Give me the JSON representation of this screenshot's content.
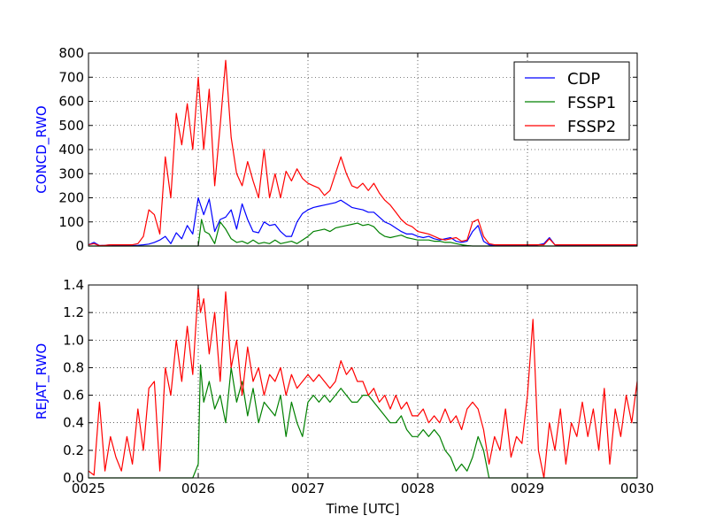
{
  "chart_data": [
    {
      "type": "line",
      "ylabel": "CONCD_RWO",
      "ylabel_color": "#0000ff",
      "ylim": [
        0,
        800
      ],
      "yticks": [
        "0",
        "100",
        "200",
        "300",
        "400",
        "500",
        "600",
        "700",
        "800"
      ],
      "grid": true,
      "legend": {
        "placement": "top-right",
        "entries": [
          "CDP",
          "FSSP1",
          "FSSP2"
        ]
      },
      "series": [
        {
          "name": "CDP",
          "color": "#0000ff",
          "x": [
            0.0,
            0.05,
            0.1,
            0.15,
            0.2,
            0.25,
            0.3,
            0.35,
            0.4,
            0.45,
            0.5,
            0.55,
            0.6,
            0.65,
            0.7,
            0.75,
            0.8,
            0.85,
            0.9,
            0.95,
            1.0,
            1.05,
            1.1,
            1.15,
            1.2,
            1.25,
            1.3,
            1.35,
            1.4,
            1.45,
            1.5,
            1.55,
            1.6,
            1.65,
            1.7,
            1.75,
            1.8,
            1.85,
            1.9,
            1.95,
            2.0,
            2.05,
            2.1,
            2.15,
            2.2,
            2.25,
            2.3,
            2.35,
            2.4,
            2.45,
            2.5,
            2.55,
            2.6,
            2.65,
            2.7,
            2.75,
            2.8,
            2.85,
            2.9,
            2.95,
            3.0,
            3.05,
            3.1,
            3.15,
            3.2,
            3.25,
            3.3,
            3.35,
            3.4,
            3.45,
            3.5,
            3.55,
            3.6,
            3.65,
            3.7,
            3.75,
            3.8,
            3.85,
            3.9,
            3.95,
            4.0,
            4.05,
            4.1,
            4.15,
            4.2,
            4.25,
            4.3,
            4.35,
            4.4,
            4.45,
            4.5,
            4.55,
            4.6,
            4.65,
            4.7,
            4.75,
            4.8,
            4.85,
            4.9,
            4.95,
            5.0
          ],
          "y": [
            5,
            15,
            2,
            3,
            5,
            2,
            2,
            4,
            2,
            3,
            5,
            8,
            15,
            25,
            40,
            10,
            55,
            30,
            85,
            50,
            200,
            130,
            195,
            60,
            110,
            120,
            150,
            70,
            175,
            110,
            60,
            55,
            100,
            85,
            90,
            60,
            40,
            40,
            100,
            135,
            150,
            160,
            165,
            170,
            175,
            180,
            190,
            175,
            160,
            155,
            150,
            140,
            140,
            120,
            100,
            90,
            75,
            60,
            50,
            50,
            40,
            35,
            40,
            30,
            25,
            30,
            35,
            20,
            15,
            20,
            60,
            85,
            20,
            5,
            2,
            2,
            2,
            2,
            2,
            2,
            2,
            2,
            5,
            10,
            35,
            5,
            2,
            2,
            2,
            2,
            2,
            2,
            2,
            2,
            2,
            2,
            2,
            2,
            2,
            2,
            2
          ]
        },
        {
          "name": "FSSP1",
          "color": "#008000",
          "x": [
            0.0,
            0.5,
            0.9,
            0.95,
            1.0,
            1.03,
            1.06,
            1.1,
            1.15,
            1.2,
            1.25,
            1.3,
            1.35,
            1.4,
            1.45,
            1.5,
            1.55,
            1.6,
            1.65,
            1.7,
            1.75,
            1.8,
            1.85,
            1.9,
            1.95,
            2.0,
            2.05,
            2.1,
            2.15,
            2.2,
            2.25,
            2.3,
            2.35,
            2.4,
            2.45,
            2.5,
            2.55,
            2.6,
            2.65,
            2.7,
            2.75,
            2.8,
            2.85,
            2.9,
            2.95,
            3.0,
            3.05,
            3.1,
            3.15,
            3.2,
            3.25,
            3.3,
            3.35,
            3.4,
            3.45,
            3.5,
            3.55,
            3.6,
            3.65,
            5.0
          ],
          "y": [
            0,
            0,
            0,
            0,
            0,
            110,
            60,
            50,
            10,
            100,
            70,
            30,
            15,
            20,
            10,
            25,
            10,
            15,
            10,
            25,
            10,
            15,
            20,
            10,
            25,
            40,
            60,
            65,
            70,
            60,
            75,
            80,
            85,
            90,
            95,
            85,
            90,
            80,
            55,
            40,
            35,
            40,
            45,
            35,
            30,
            25,
            25,
            25,
            20,
            20,
            15,
            15,
            10,
            5,
            2,
            0,
            0,
            0,
            0,
            0
          ]
        },
        {
          "name": "FSSP2",
          "color": "#ff0000",
          "x": [
            0.0,
            0.05,
            0.1,
            0.15,
            0.2,
            0.25,
            0.3,
            0.35,
            0.4,
            0.45,
            0.5,
            0.55,
            0.6,
            0.65,
            0.7,
            0.75,
            0.8,
            0.85,
            0.9,
            0.95,
            1.0,
            1.05,
            1.1,
            1.15,
            1.2,
            1.25,
            1.3,
            1.35,
            1.4,
            1.45,
            1.5,
            1.55,
            1.6,
            1.65,
            1.7,
            1.75,
            1.8,
            1.85,
            1.9,
            1.95,
            2.0,
            2.05,
            2.1,
            2.15,
            2.2,
            2.25,
            2.3,
            2.35,
            2.4,
            2.45,
            2.5,
            2.55,
            2.6,
            2.65,
            2.7,
            2.75,
            2.8,
            2.85,
            2.9,
            2.95,
            3.0,
            3.05,
            3.1,
            3.15,
            3.2,
            3.25,
            3.3,
            3.35,
            3.4,
            3.45,
            3.5,
            3.55,
            3.6,
            3.65,
            3.7,
            3.75,
            3.8,
            3.85,
            3.9,
            3.95,
            4.0,
            4.05,
            4.1,
            4.15,
            4.2,
            4.25,
            4.3,
            4.35,
            4.4,
            4.45,
            4.5,
            4.55,
            4.6,
            4.65,
            4.7,
            4.75,
            4.8,
            4.85,
            4.9,
            4.95,
            5.0
          ],
          "y": [
            5,
            10,
            2,
            3,
            5,
            5,
            5,
            5,
            5,
            10,
            40,
            150,
            130,
            50,
            370,
            200,
            550,
            420,
            590,
            400,
            700,
            400,
            650,
            250,
            500,
            770,
            450,
            300,
            250,
            350,
            270,
            200,
            400,
            200,
            300,
            200,
            310,
            270,
            320,
            280,
            260,
            250,
            240,
            210,
            230,
            300,
            370,
            300,
            250,
            240,
            260,
            230,
            260,
            220,
            190,
            170,
            140,
            110,
            90,
            80,
            60,
            55,
            50,
            40,
            30,
            25,
            30,
            35,
            20,
            25,
            100,
            110,
            40,
            10,
            5,
            5,
            5,
            5,
            5,
            5,
            5,
            5,
            5,
            5,
            30,
            5,
            5,
            5,
            5,
            5,
            5,
            5,
            5,
            5,
            5,
            5,
            5,
            5,
            5,
            5,
            5
          ]
        }
      ]
    },
    {
      "type": "line",
      "ylabel": "REJAT_RWO",
      "ylabel_color": "#0000ff",
      "xlabel": "Time [UTC]",
      "ylim": [
        0,
        1.4
      ],
      "yticks": [
        "0.0",
        "0.2",
        "0.4",
        "0.6",
        "0.8",
        "1.0",
        "1.2",
        "1.4"
      ],
      "xticks": [
        "0025",
        "0026",
        "0027",
        "0028",
        "0029",
        "0030"
      ],
      "xlim": [
        0,
        5
      ],
      "grid": true,
      "series": [
        {
          "name": "FSSP1",
          "color": "#008000",
          "x": [
            0.0,
            0.5,
            0.8,
            0.9,
            0.95,
            1.0,
            1.02,
            1.05,
            1.1,
            1.15,
            1.2,
            1.25,
            1.3,
            1.35,
            1.4,
            1.45,
            1.5,
            1.55,
            1.6,
            1.65,
            1.7,
            1.75,
            1.8,
            1.85,
            1.9,
            1.95,
            2.0,
            2.05,
            2.1,
            2.15,
            2.2,
            2.25,
            2.3,
            2.35,
            2.4,
            2.45,
            2.5,
            2.55,
            2.6,
            2.65,
            2.7,
            2.75,
            2.8,
            2.85,
            2.9,
            2.95,
            3.0,
            3.05,
            3.1,
            3.15,
            3.2,
            3.25,
            3.3,
            3.35,
            3.4,
            3.45,
            3.5,
            3.55,
            3.6,
            3.65,
            3.7,
            5.0
          ],
          "y": [
            0,
            0,
            0,
            0,
            0,
            0.1,
            0.82,
            0.55,
            0.7,
            0.5,
            0.6,
            0.4,
            0.8,
            0.55,
            0.7,
            0.45,
            0.65,
            0.4,
            0.55,
            0.5,
            0.45,
            0.6,
            0.3,
            0.55,
            0.4,
            0.3,
            0.55,
            0.6,
            0.55,
            0.6,
            0.55,
            0.6,
            0.65,
            0.6,
            0.55,
            0.55,
            0.6,
            0.6,
            0.55,
            0.5,
            0.45,
            0.4,
            0.4,
            0.45,
            0.35,
            0.3,
            0.3,
            0.35,
            0.3,
            0.35,
            0.3,
            0.2,
            0.15,
            0.05,
            0.1,
            0.05,
            0.15,
            0.3,
            0.2,
            0,
            0,
            0
          ]
        },
        {
          "name": "FSSP2",
          "color": "#ff0000",
          "x": [
            0.0,
            0.05,
            0.1,
            0.15,
            0.2,
            0.25,
            0.3,
            0.35,
            0.4,
            0.45,
            0.5,
            0.55,
            0.6,
            0.65,
            0.7,
            0.75,
            0.8,
            0.85,
            0.9,
            0.95,
            1.0,
            1.02,
            1.05,
            1.1,
            1.15,
            1.2,
            1.25,
            1.3,
            1.35,
            1.4,
            1.45,
            1.5,
            1.55,
            1.6,
            1.65,
            1.7,
            1.75,
            1.8,
            1.85,
            1.9,
            1.95,
            2.0,
            2.05,
            2.1,
            2.15,
            2.2,
            2.25,
            2.3,
            2.35,
            2.4,
            2.45,
            2.5,
            2.55,
            2.6,
            2.65,
            2.7,
            2.75,
            2.8,
            2.85,
            2.9,
            2.95,
            3.0,
            3.05,
            3.1,
            3.15,
            3.2,
            3.25,
            3.3,
            3.35,
            3.4,
            3.45,
            3.5,
            3.55,
            3.6,
            3.65,
            3.7,
            3.75,
            3.8,
            3.85,
            3.9,
            3.95,
            4.0,
            4.05,
            4.1,
            4.15,
            4.2,
            4.25,
            4.3,
            4.35,
            4.4,
            4.45,
            4.5,
            4.55,
            4.6,
            4.65,
            4.7,
            4.75,
            4.8,
            4.85,
            4.9,
            4.95,
            5.0
          ],
          "y": [
            0.05,
            0.02,
            0.55,
            0.05,
            0.3,
            0.15,
            0.05,
            0.3,
            0.1,
            0.5,
            0.2,
            0.65,
            0.7,
            0.05,
            0.8,
            0.6,
            1.0,
            0.7,
            1.1,
            0.75,
            1.38,
            1.2,
            1.3,
            0.9,
            1.2,
            0.7,
            1.35,
            0.8,
            1.0,
            0.6,
            0.95,
            0.7,
            0.8,
            0.6,
            0.75,
            0.7,
            0.8,
            0.6,
            0.75,
            0.65,
            0.7,
            0.75,
            0.7,
            0.75,
            0.7,
            0.65,
            0.7,
            0.85,
            0.75,
            0.8,
            0.7,
            0.7,
            0.6,
            0.65,
            0.55,
            0.6,
            0.5,
            0.6,
            0.5,
            0.55,
            0.45,
            0.45,
            0.5,
            0.4,
            0.45,
            0.4,
            0.5,
            0.4,
            0.45,
            0.35,
            0.5,
            0.55,
            0.5,
            0.35,
            0.1,
            0.3,
            0.2,
            0.5,
            0.15,
            0.3,
            0.25,
            0.6,
            1.15,
            0.2,
            0,
            0.4,
            0.2,
            0.5,
            0.1,
            0.4,
            0.3,
            0.55,
            0.3,
            0.5,
            0.2,
            0.65,
            0.1,
            0.5,
            0.3,
            0.6,
            0.4,
            0.7
          ]
        }
      ]
    }
  ]
}
